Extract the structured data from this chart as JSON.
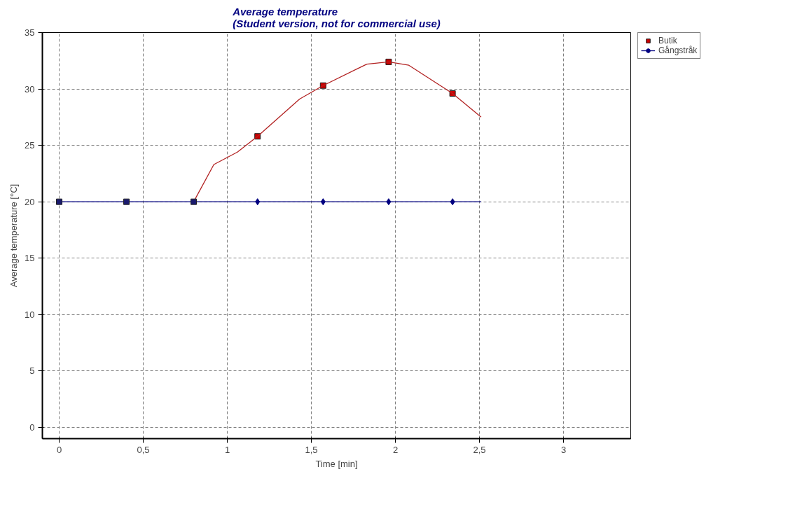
{
  "chart_data": {
    "type": "line",
    "title": "Average temperature\n(Student version, not for commercial use)",
    "xlabel": "Time [min]",
    "ylabel": "Average temperature [°C]",
    "series": [
      {
        "name": "Butik",
        "type": "scatter",
        "marker": "square",
        "color": "#cc0000",
        "x": [
          1.18,
          1.57,
          1.96,
          2.34
        ],
        "values": [
          25.8,
          30.3,
          32.4,
          29.6
        ]
      },
      {
        "name": "Gångstråk",
        "type": "scatter",
        "marker": "diamond",
        "color": "#000080",
        "x": [
          1.18,
          1.57,
          1.96,
          2.34
        ],
        "values": [
          20,
          20,
          20,
          20
        ]
      },
      {
        "marker": "none",
        "color": "#000080",
        "x": [
          0,
          2.51
        ],
        "values": [
          20,
          20
        ]
      },
      {
        "marker": "none",
        "color": "#b22222",
        "x": [
          0.8,
          0.92,
          1.06,
          1.18,
          1.43,
          1.57,
          1.83,
          1.96,
          2.08,
          2.34,
          2.51
        ],
        "values": [
          20,
          23.3,
          24.4,
          25.8,
          29.1,
          30.3,
          32.2,
          32.4,
          32.1,
          29.6,
          27.5
        ]
      },
      {
        "type": "scatter",
        "marker": "square",
        "color": "#1a1a6e",
        "x": [
          0,
          0.4,
          0.8
        ],
        "values": [
          20,
          20,
          20
        ]
      }
    ],
    "xlim": [
      -0.1,
      3.4
    ],
    "ylim": [
      -1,
      35
    ],
    "xticks": [
      0,
      {
        "value": 0.5,
        "label": "0,5"
      },
      1,
      {
        "value": 1.5,
        "label": "1,5"
      },
      2,
      {
        "value": 2.5,
        "label": "2,5"
      },
      3
    ],
    "yticks": [
      0,
      5,
      10,
      15,
      20,
      25,
      30,
      35
    ],
    "grid": true,
    "legend": "top right",
    "line_style": "solid"
  }
}
